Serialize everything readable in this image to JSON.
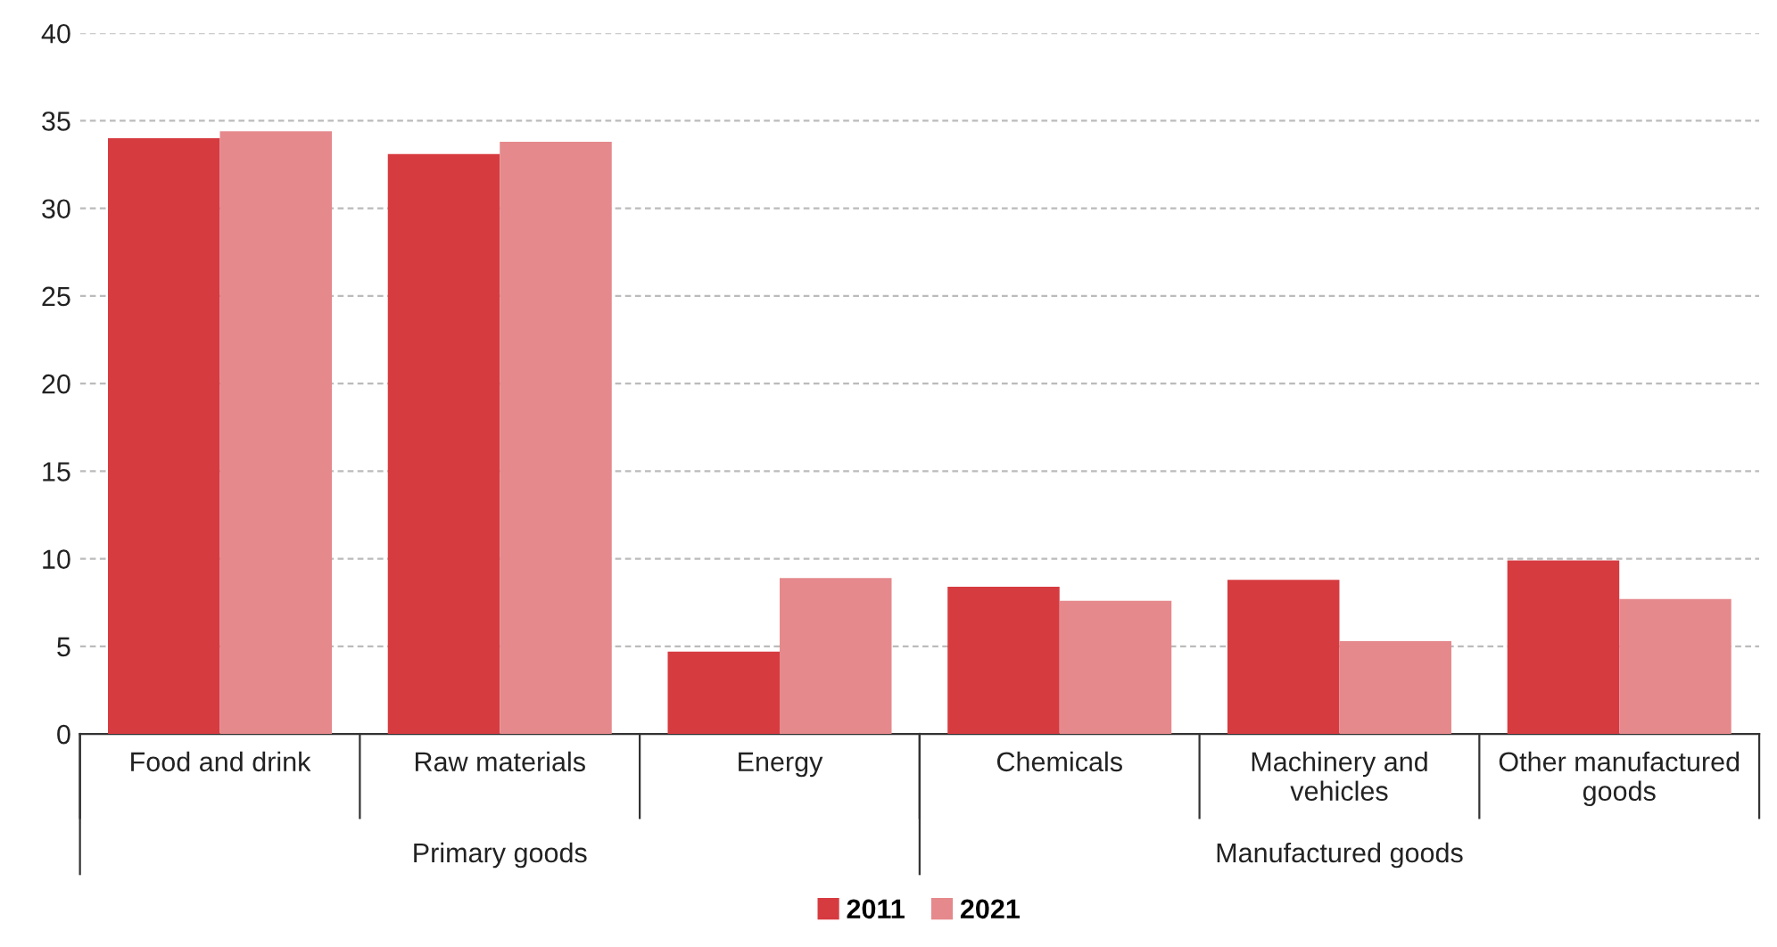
{
  "chart_data": {
    "type": "bar",
    "categories": [
      "Food and drink",
      "Raw materials",
      "Energy",
      "Chemicals",
      "Machinery and vehicles",
      "Other manufactured goods"
    ],
    "series": [
      {
        "name": "2011",
        "color": "#d63b40",
        "values": [
          34.0,
          33.1,
          4.7,
          8.4,
          8.8,
          9.9
        ]
      },
      {
        "name": "2021",
        "color": "#e5898c",
        "values": [
          34.4,
          33.8,
          8.9,
          7.6,
          5.3,
          7.7
        ]
      }
    ],
    "ylim": [
      0,
      40
    ],
    "yticks": [
      0,
      5,
      10,
      15,
      20,
      25,
      30,
      35,
      40
    ],
    "grid": "y",
    "legend": "bottom",
    "annotations": [
      "Primary goods",
      "Manufactured goods"
    ]
  }
}
